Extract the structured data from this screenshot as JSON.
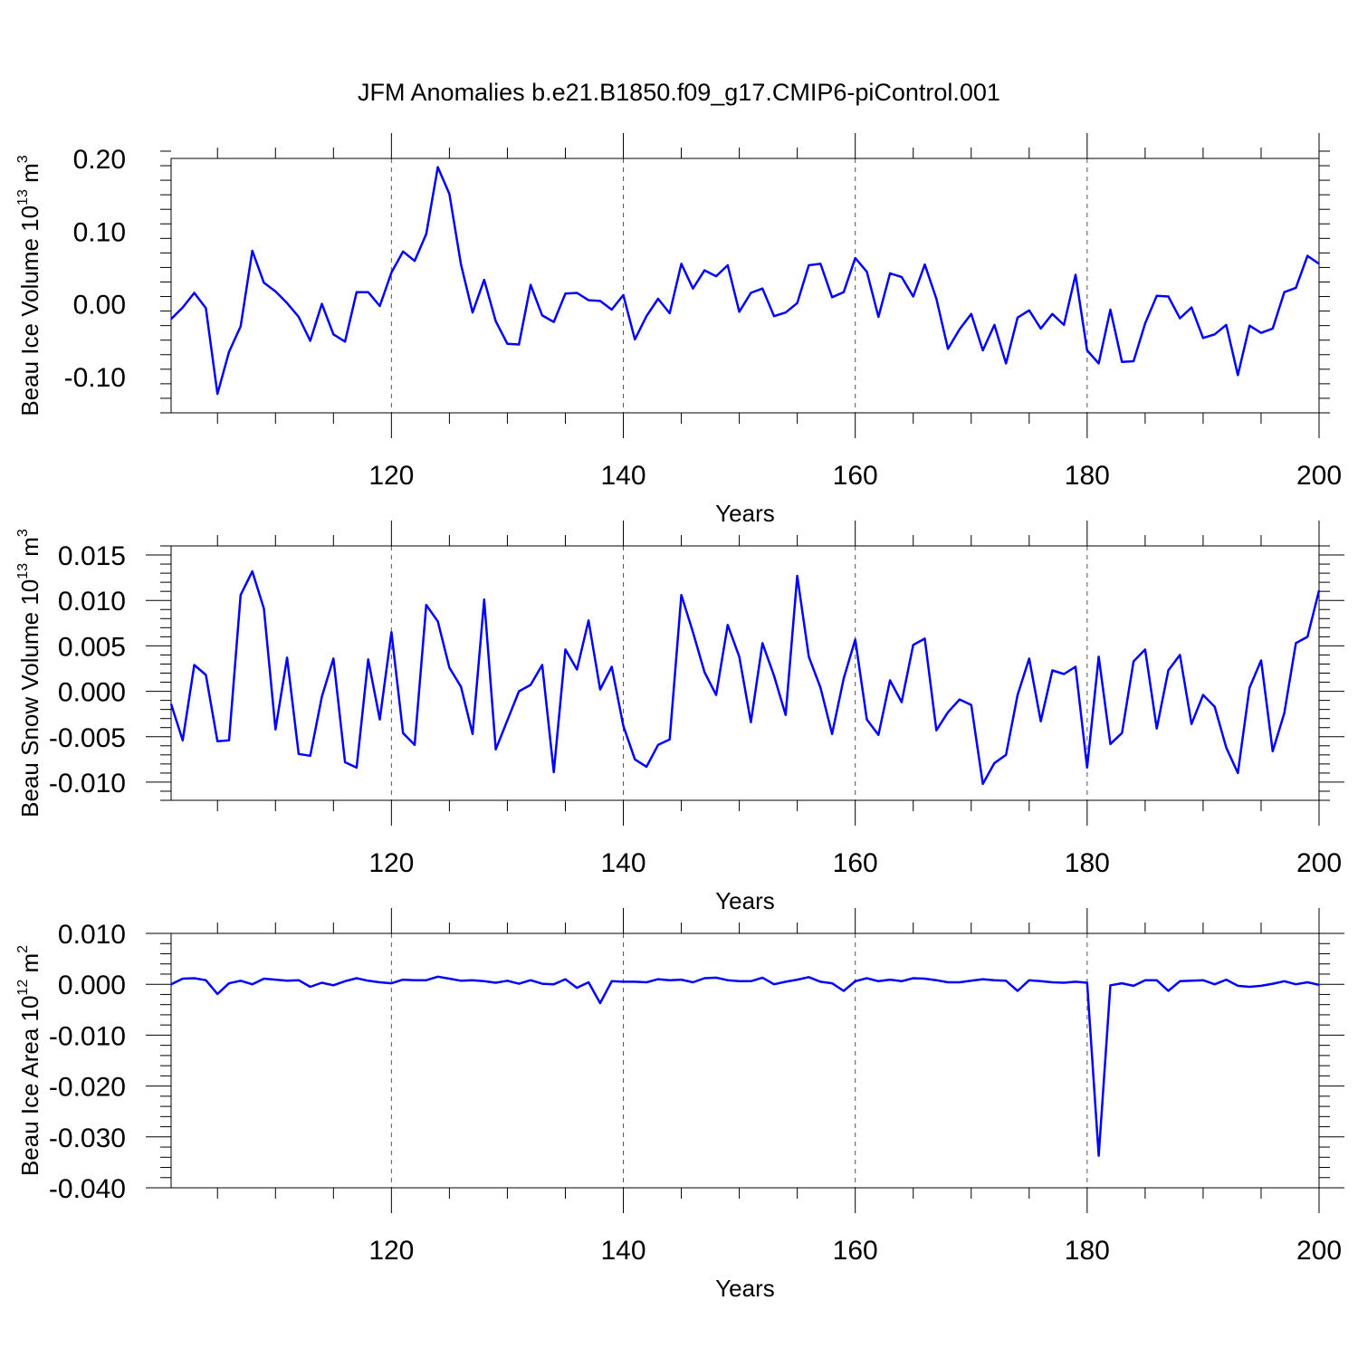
{
  "title": "JFM Anomalies b.e21.B1850.f09_g17.CMIP6-piControl.001",
  "line_color": "#0000ff",
  "chart_data": [
    {
      "type": "line",
      "ylabel": {
        "main": "Beau Ice Volume 10",
        "exp": "13",
        "unit": " m",
        "unit_exp": "3"
      },
      "xlabel": "Years",
      "xlim": [
        101,
        200
      ],
      "ylim": [
        -0.15,
        0.2
      ],
      "yticks": [
        0.2,
        0.1,
        0.0,
        -0.1
      ],
      "ytick_labels": [
        "0.20",
        "0.10",
        "0.00",
        "-0.10"
      ],
      "xticks": [
        120,
        140,
        160,
        180,
        200
      ],
      "xtick_labels": [
        "120",
        "140",
        "160",
        "180",
        "200"
      ],
      "gridlines_x": [
        120,
        140,
        160,
        180
      ],
      "series": [
        {
          "name": "Beau Ice Volume",
          "x_start": 101,
          "values": [
            -0.021,
            -0.005,
            0.015,
            -0.006,
            -0.124,
            -0.066,
            -0.031,
            0.073,
            0.029,
            0.017,
            0.001,
            -0.018,
            -0.051,
            0.0,
            -0.042,
            -0.052,
            0.016,
            0.016,
            -0.003,
            0.043,
            0.072,
            0.059,
            0.096,
            0.188,
            0.151,
            0.054,
            -0.012,
            0.033,
            -0.024,
            -0.055,
            -0.056,
            0.026,
            -0.016,
            -0.025,
            0.014,
            0.015,
            0.005,
            0.004,
            -0.008,
            0.012,
            -0.049,
            -0.017,
            0.007,
            -0.013,
            0.055,
            0.021,
            0.046,
            0.038,
            0.053,
            -0.011,
            0.015,
            0.021,
            -0.017,
            -0.012,
            0.001,
            0.053,
            0.055,
            0.009,
            0.016,
            0.063,
            0.044,
            -0.018,
            0.042,
            0.037,
            0.01,
            0.054,
            0.007,
            -0.062,
            -0.035,
            -0.014,
            -0.064,
            -0.029,
            -0.082,
            -0.019,
            -0.009,
            -0.034,
            -0.014,
            -0.029,
            0.04,
            -0.064,
            -0.082,
            -0.008,
            -0.08,
            -0.079,
            -0.027,
            0.011,
            0.01,
            -0.02,
            -0.005,
            -0.047,
            -0.042,
            -0.029,
            -0.098,
            -0.03,
            -0.04,
            -0.034,
            0.016,
            0.022,
            0.066,
            0.055
          ]
        }
      ]
    },
    {
      "type": "line",
      "ylabel": {
        "main": "Beau Snow Volume 10",
        "exp": "13",
        "unit": " m",
        "unit_exp": "3"
      },
      "xlabel": "Years",
      "xlim": [
        101,
        200
      ],
      "ylim": [
        -0.012,
        0.016
      ],
      "yticks": [
        0.015,
        0.01,
        0.005,
        0.0,
        -0.005,
        -0.01
      ],
      "ytick_labels": [
        "0.015",
        "0.010",
        "0.005",
        "0.000",
        "-0.005",
        "-0.010"
      ],
      "xticks": [
        120,
        140,
        160,
        180,
        200
      ],
      "xtick_labels": [
        "120",
        "140",
        "160",
        "180",
        "200"
      ],
      "gridlines_x": [
        120,
        140,
        160,
        180
      ],
      "series": [
        {
          "name": "Beau Snow Volume",
          "x_start": 101,
          "values": [
            -0.0014,
            -0.0054,
            0.0029,
            0.0018,
            -0.0055,
            -0.0054,
            0.0106,
            0.0132,
            0.0091,
            -0.0042,
            0.0037,
            -0.0069,
            -0.0071,
            -0.0006,
            0.0036,
            -0.0078,
            -0.0084,
            0.0035,
            -0.0031,
            0.0065,
            -0.0046,
            -0.0059,
            0.0095,
            0.0077,
            0.0026,
            0.0005,
            -0.0047,
            0.0101,
            -0.0064,
            -0.0032,
            0.0,
            0.0007,
            0.0029,
            -0.0089,
            0.0046,
            0.0024,
            0.0078,
            0.0002,
            0.0027,
            -0.0038,
            -0.0075,
            -0.0083,
            -0.0059,
            -0.0053,
            0.0106,
            0.0065,
            0.0021,
            -0.0004,
            0.0073,
            0.0038,
            -0.0034,
            0.0053,
            0.0017,
            -0.0026,
            0.0127,
            0.0038,
            0.0004,
            -0.0047,
            0.0014,
            0.0057,
            -0.0031,
            -0.0048,
            0.0012,
            -0.0012,
            0.0051,
            0.0058,
            -0.0043,
            -0.0023,
            -0.0009,
            -0.0015,
            -0.0102,
            -0.0079,
            -0.007,
            -0.0004,
            0.0036,
            -0.0033,
            0.0023,
            0.0019,
            0.0027,
            -0.0084,
            0.0038,
            -0.0058,
            -0.0046,
            0.0033,
            0.0046,
            -0.0041,
            0.0023,
            0.004,
            -0.0036,
            -0.0004,
            -0.0017,
            -0.0062,
            -0.009,
            0.0004,
            0.0034,
            -0.0066,
            -0.0024,
            0.0053,
            0.006,
            0.0111
          ]
        }
      ]
    },
    {
      "type": "line",
      "ylabel": {
        "main": "Beau Ice Area 10",
        "exp": "12",
        "unit": " m",
        "unit_exp": "2"
      },
      "xlabel": "Years",
      "xlim": [
        101,
        200
      ],
      "ylim": [
        -0.04,
        0.01
      ],
      "yticks": [
        0.01,
        0.0,
        -0.01,
        -0.02,
        -0.03,
        -0.04
      ],
      "ytick_labels": [
        "0.010",
        "0.000",
        "-0.010",
        "-0.020",
        "-0.030",
        "-0.040"
      ],
      "xticks": [
        120,
        140,
        160,
        180,
        200
      ],
      "xtick_labels": [
        "120",
        "140",
        "160",
        "180",
        "200"
      ],
      "gridlines_x": [
        120,
        140,
        160,
        180
      ],
      "series": [
        {
          "name": "Beau Ice Area",
          "x_start": 101,
          "values": [
            0.0,
            0.0011,
            0.0012,
            0.0008,
            -0.0019,
            0.0002,
            0.0007,
            0.0,
            0.0011,
            0.0009,
            0.0007,
            0.0008,
            -0.0005,
            0.0003,
            -0.0002,
            0.0006,
            0.0012,
            0.0007,
            0.0004,
            0.0002,
            0.0009,
            0.0008,
            0.0008,
            0.0015,
            0.0011,
            0.0007,
            0.0008,
            0.0006,
            0.0003,
            0.0007,
            0.0001,
            0.0008,
            0.0001,
            0.0,
            0.001,
            -0.0007,
            0.0004,
            -0.0037,
            0.0006,
            0.0005,
            0.0005,
            0.0004,
            0.001,
            0.0008,
            0.0009,
            0.0004,
            0.0012,
            0.0013,
            0.0008,
            0.0006,
            0.0006,
            0.0013,
            0.0,
            0.0005,
            0.0009,
            0.0014,
            0.0005,
            0.0002,
            -0.0013,
            0.0006,
            0.0012,
            0.0006,
            0.0009,
            0.0006,
            0.0012,
            0.0011,
            0.0008,
            0.0004,
            0.0004,
            0.0007,
            0.001,
            0.0008,
            0.0007,
            -0.0013,
            0.0008,
            0.0006,
            0.0004,
            0.0003,
            0.0005,
            0.0003,
            -0.0337,
            -0.0002,
            0.0002,
            -0.0003,
            0.0008,
            0.0008,
            -0.0013,
            0.0006,
            0.0007,
            0.0008,
            0.0,
            0.0009,
            -0.0003,
            -0.0005,
            -0.0003,
            0.0001,
            0.0006,
            0.0,
            0.0004,
            -0.0001
          ]
        }
      ]
    }
  ]
}
